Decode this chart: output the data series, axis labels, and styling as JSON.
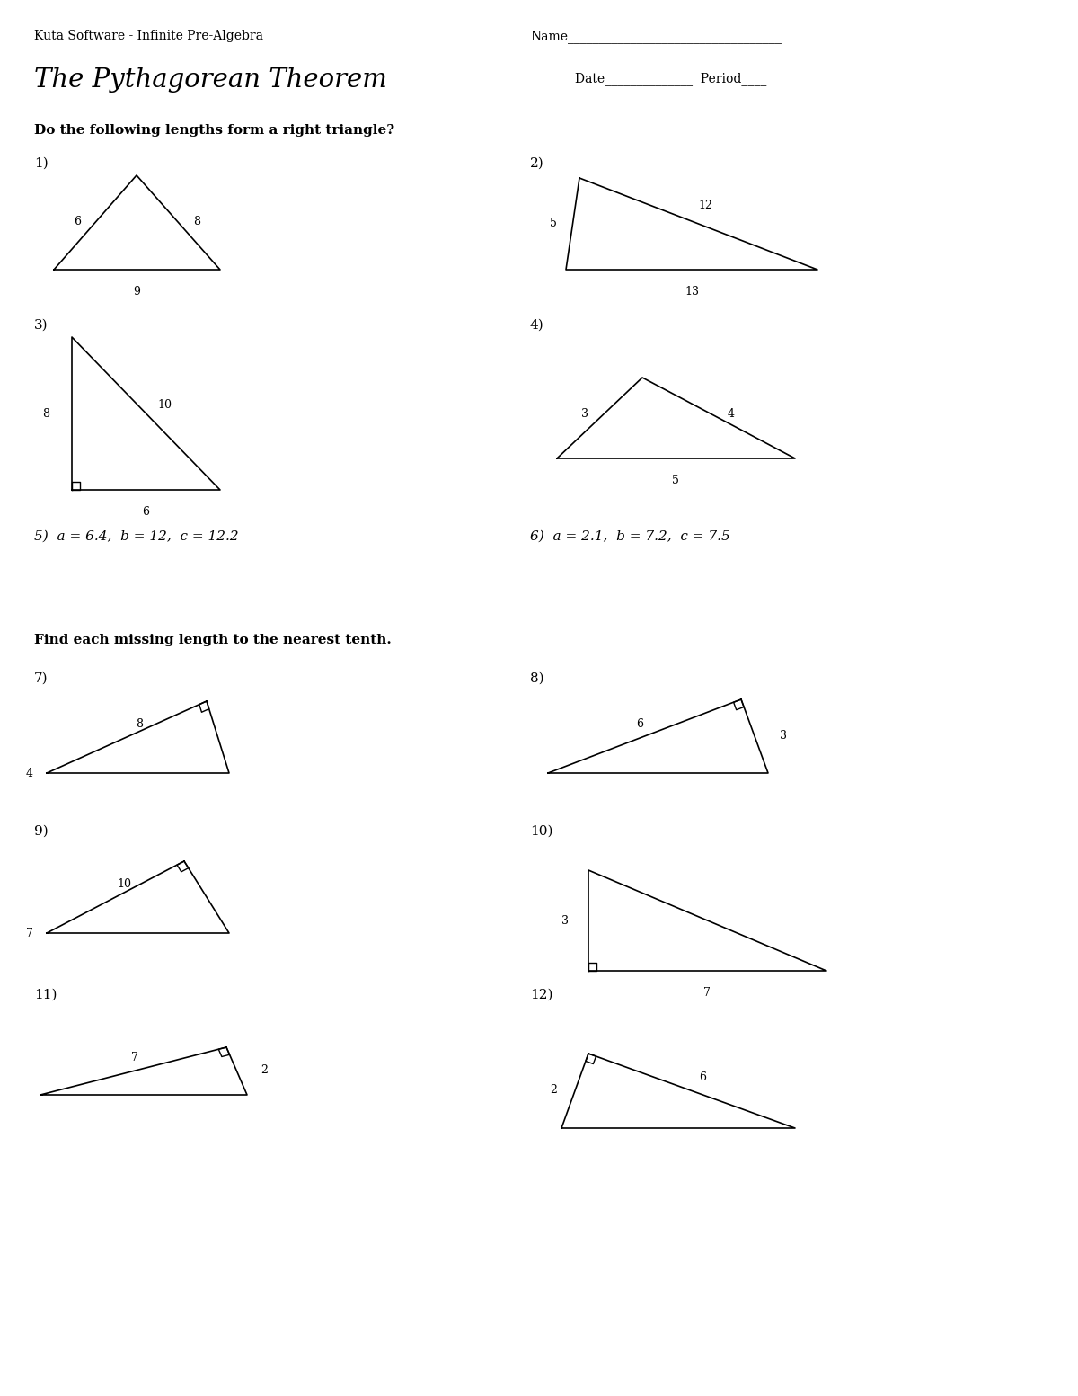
{
  "title": "The Pythagorean Theorem",
  "subtitle": "Kuta Software - Infinite Pre-Algebra",
  "name_line": "Name__________________________________",
  "date_line": "Date______________  Period____",
  "section1_title": "Do the following lengths form a right triangle?",
  "section2_title": "Find each missing length to the nearest tenth.",
  "bg_color": "#ffffff",
  "text_color": "#000000"
}
